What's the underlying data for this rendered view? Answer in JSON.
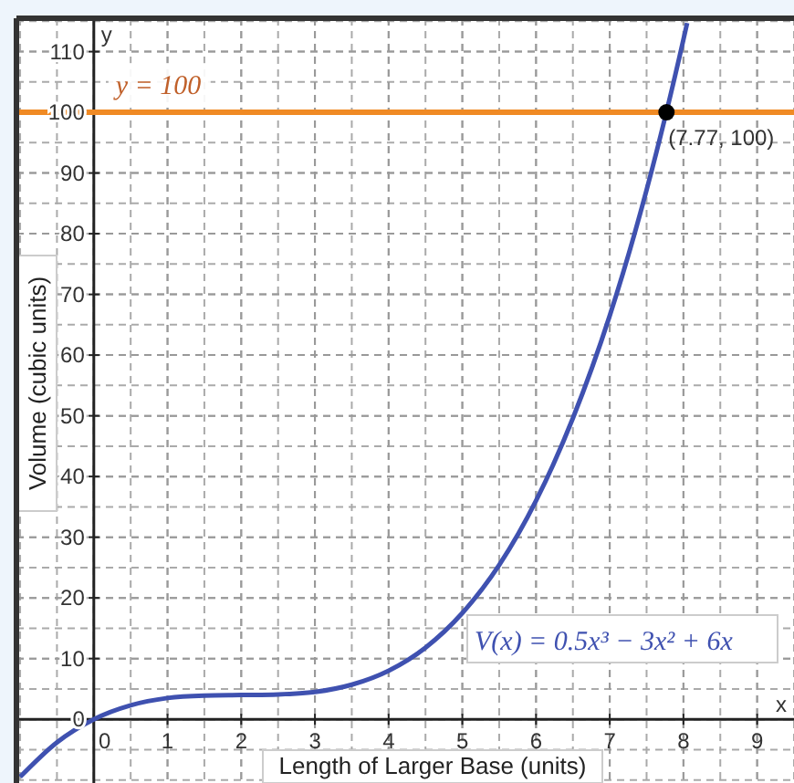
{
  "chart_data": {
    "type": "line",
    "xlabel": "Length of Larger Base (units)",
    "ylabel": "Volume (cubic units)",
    "xlim": [
      -1.05,
      9.5
    ],
    "ylim": [
      -10.5,
      115.5
    ],
    "xticks": [
      0,
      1,
      2,
      3,
      4,
      5,
      6,
      7,
      8,
      9
    ],
    "yticks": [
      0,
      10,
      20,
      30,
      40,
      50,
      60,
      70,
      80,
      90,
      100,
      110
    ],
    "grid": true,
    "series": [
      {
        "name": "V(x) = 0.5x³ − 3x² + 6x",
        "color": "#3f51b0",
        "marker": "none",
        "x": [
          -1,
          -0.5,
          0,
          0.5,
          1,
          1.5,
          2,
          2.5,
          3,
          3.5,
          4,
          4.5,
          5,
          5.5,
          6,
          6.5,
          7,
          7.5,
          8,
          8.05
        ],
        "values": [
          -9.5,
          -3.8,
          0,
          2.3,
          3.5,
          3.9,
          4,
          4.1,
          4.5,
          5.7,
          8,
          11.8,
          17.5,
          25.4,
          36,
          49.6,
          66.5,
          87.2,
          112,
          114.7
        ]
      },
      {
        "type": "scatter",
        "color": "#000000",
        "marker": "circle",
        "x": [
          7.77
        ],
        "values": [
          100
        ],
        "value_labels": [
          "(7.77, 100)"
        ]
      }
    ],
    "ref_lines": [
      {
        "axis": "y",
        "value": 100,
        "label": "y = 100",
        "color": "#f08a24",
        "line_style": "solid"
      }
    ],
    "annotations": [
      "x",
      "y"
    ]
  }
}
